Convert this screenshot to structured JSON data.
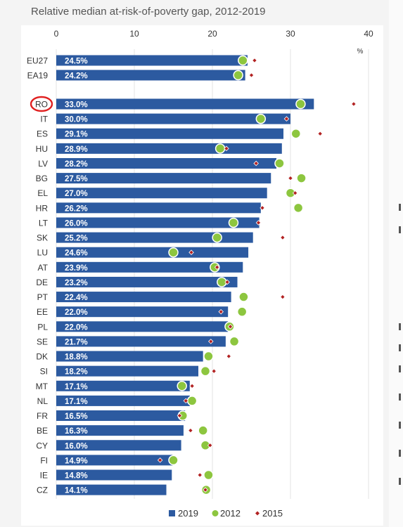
{
  "chart_data": {
    "type": "bar",
    "title": "Relative median at-risk-of-poverty gap, 2012-2019",
    "unit": "%",
    "xlim": [
      0,
      40
    ],
    "x_ticks": [
      "0",
      "10",
      "20",
      "30",
      "40"
    ],
    "grid": true,
    "legend_position": "bottom",
    "categories": [
      "EU27",
      "EA19",
      "RO",
      "IT",
      "ES",
      "HU",
      "LV",
      "BG",
      "EL",
      "HR",
      "LT",
      "SK",
      "LU",
      "AT",
      "DE",
      "PT",
      "EE",
      "PL",
      "SE",
      "DK",
      "SI",
      "MT",
      "NL",
      "FR",
      "BE",
      "CY",
      "FI",
      "IE",
      "CZ"
    ],
    "value_labels": [
      "24.5%",
      "24.2%",
      "33.0%",
      "30.0%",
      "29.1%",
      "28.9%",
      "28.2%",
      "27.5%",
      "27.0%",
      "26.2%",
      "26.0%",
      "25.2%",
      "24.6%",
      "23.9%",
      "23.2%",
      "22.4%",
      "22.0%",
      "22.0%",
      "21.7%",
      "18.8%",
      "18.2%",
      "17.1%",
      "17.1%",
      "16.5%",
      "16.3%",
      "16.0%",
      "14.9%",
      "14.8%",
      "14.1%"
    ],
    "series": [
      {
        "name": "2019",
        "marker": "bar",
        "color": "#2c5aa0",
        "values": [
          24.5,
          24.2,
          33.0,
          30.0,
          29.1,
          28.9,
          28.2,
          27.5,
          27.0,
          26.2,
          26.0,
          25.2,
          24.6,
          23.9,
          23.2,
          22.4,
          22.0,
          22.0,
          21.7,
          18.8,
          18.2,
          17.1,
          17.1,
          16.5,
          16.3,
          16.0,
          14.9,
          14.8,
          14.1
        ]
      },
      {
        "name": "2012",
        "marker": "circle",
        "color": "#8dc63f",
        "values": [
          23.9,
          23.3,
          31.3,
          26.2,
          30.7,
          21.0,
          28.6,
          31.4,
          30.0,
          31.0,
          22.7,
          20.6,
          15.0,
          20.3,
          21.2,
          24.0,
          23.8,
          22.2,
          22.8,
          19.5,
          19.1,
          16.1,
          17.4,
          16.2,
          18.8,
          19.1,
          15.0,
          19.5,
          19.2
        ]
      },
      {
        "name": "2015",
        "marker": "diamond",
        "color": "#b22222",
        "values": [
          25.4,
          25.0,
          38.1,
          29.5,
          33.8,
          21.8,
          25.6,
          30.0,
          30.6,
          26.4,
          25.9,
          29.0,
          17.3,
          20.6,
          21.9,
          29.0,
          21.1,
          22.3,
          19.8,
          22.1,
          20.2,
          17.4,
          16.6,
          15.8,
          17.2,
          19.7,
          13.3,
          18.4,
          19.1
        ]
      }
    ]
  }
}
